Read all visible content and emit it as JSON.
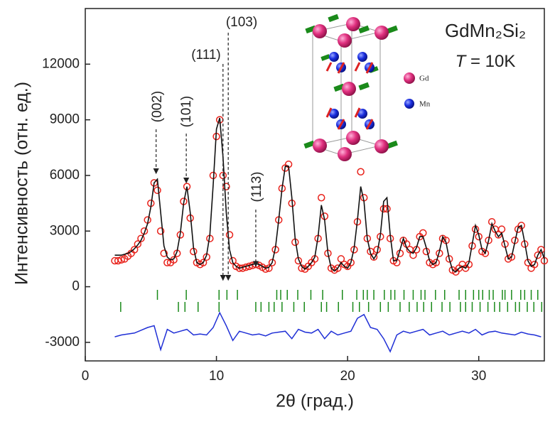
{
  "chart_data": {
    "type": "diffraction",
    "title": "GdMn₂Si₂",
    "temperature_label": {
      "symbol": "T",
      "text": " = 10K"
    },
    "x_label": "2θ (град.)",
    "y_label": "Интенсивность (отн. ед.)",
    "xlim": [
      0,
      35
    ],
    "ylim": [
      -4000,
      15000
    ],
    "xticks": [
      0,
      10,
      20,
      30
    ],
    "yticks": [
      -3000,
      0,
      3000,
      6000,
      9000,
      12000
    ],
    "x": [
      2.25,
      2.5,
      2.75,
      3,
      3.25,
      3.5,
      3.75,
      4,
      4.25,
      4.5,
      4.75,
      5,
      5.25,
      5.5,
      5.75,
      6,
      6.25,
      6.5,
      6.75,
      7,
      7.25,
      7.5,
      7.75,
      8,
      8.25,
      8.5,
      8.75,
      9,
      9.25,
      9.5,
      9.75,
      10,
      10.25,
      10.5,
      10.75,
      11,
      11.25,
      11.5,
      11.75,
      12,
      12.25,
      12.5,
      12.75,
      13,
      13.25,
      13.5,
      13.75,
      14,
      14.25,
      14.5,
      14.75,
      15,
      15.25,
      15.5,
      15.75,
      16,
      16.25,
      16.5,
      16.75,
      17,
      17.25,
      17.5,
      17.75,
      18,
      18.25,
      18.5,
      18.75,
      19,
      19.25,
      19.5,
      19.75,
      20,
      20.25,
      20.5,
      20.75,
      21,
      21.25,
      21.5,
      21.75,
      22,
      22.25,
      22.5,
      22.75,
      23,
      23.25,
      23.5,
      23.75,
      24,
      24.25,
      24.5,
      24.75,
      25,
      25.25,
      25.5,
      25.75,
      26,
      26.25,
      26.5,
      26.75,
      27,
      27.25,
      27.5,
      27.75,
      28,
      28.25,
      28.5,
      28.75,
      29,
      29.25,
      29.5,
      29.75,
      30,
      30.25,
      30.5,
      30.75,
      31,
      31.25,
      31.5,
      31.75,
      32,
      32.25,
      32.5,
      32.75,
      33,
      33.25,
      33.5,
      33.75,
      34,
      34.25,
      34.5,
      34.75,
      35
    ],
    "series": [
      {
        "name": "observed",
        "color": "#e8221b",
        "values": [
          1400,
          1400,
          1450,
          1500,
          1650,
          1800,
          2000,
          2300,
          2600,
          3000,
          3600,
          4500,
          5600,
          5200,
          3000,
          1800,
          1300,
          1300,
          1450,
          1800,
          2800,
          4600,
          5400,
          3700,
          1900,
          1300,
          1200,
          1300,
          1600,
          2600,
          6000,
          8100,
          9000,
          6000,
          5400,
          2800,
          1400,
          1100,
          1000,
          1000,
          1050,
          1100,
          1150,
          1200,
          1150,
          1050,
          950,
          1000,
          1300,
          2000,
          3600,
          5300,
          6400,
          6600,
          4500,
          2400,
          1400,
          1000,
          950,
          1100,
          1300,
          1500,
          2600,
          4800,
          3800,
          1800,
          1000,
          900,
          1000,
          1500,
          1200,
          1100,
          1300,
          2000,
          3500,
          6200,
          4800,
          2600,
          1900,
          1600,
          2000,
          2700,
          4200,
          4200,
          2600,
          1400,
          1300,
          1800,
          2500,
          2300,
          2000,
          1700,
          2000,
          2700,
          2900,
          1900,
          1300,
          1200,
          1300,
          1800,
          2600,
          2500,
          1500,
          900,
          800,
          1000,
          1200,
          1000,
          1200,
          2200,
          3100,
          2700,
          1900,
          1800,
          2500,
          3500,
          3100,
          2800,
          3100,
          2300,
          1500,
          1600,
          2500,
          3100,
          3300,
          2300,
          1300,
          1000,
          1200,
          1700,
          2000,
          1400
        ]
      },
      {
        "name": "calculated",
        "color": "#111111",
        "values": [
          1700,
          1700,
          1700,
          1750,
          1800,
          1900,
          2050,
          2250,
          2500,
          2900,
          3400,
          4300,
          5600,
          5800,
          4000,
          2200,
          1600,
          1450,
          1500,
          1900,
          2900,
          4500,
          5400,
          4000,
          2100,
          1300,
          1200,
          1300,
          1700,
          2800,
          5500,
          8500,
          9100,
          7000,
          4000,
          2000,
          1300,
          1100,
          1000,
          1050,
          1100,
          1150,
          1200,
          1250,
          1200,
          1100,
          1000,
          1050,
          1300,
          2100,
          3600,
          5300,
          6500,
          6500,
          4800,
          2600,
          1500,
          1100,
          950,
          1100,
          1300,
          1600,
          2700,
          4400,
          3600,
          1800,
          1000,
          850,
          1000,
          1300,
          1100,
          1000,
          1300,
          2100,
          3600,
          5400,
          4600,
          2600,
          1800,
          1500,
          1800,
          2800,
          4600,
          4800,
          2800,
          1400,
          1400,
          2000,
          2600,
          2100,
          1900,
          1800,
          2100,
          2700,
          2700,
          2100,
          1400,
          1200,
          1300,
          1900,
          2700,
          2400,
          1500,
          900,
          800,
          1000,
          1100,
          1000,
          1300,
          2300,
          3300,
          2800,
          2000,
          1800,
          2500,
          3400,
          3000,
          2700,
          2900,
          2200,
          1500,
          1600,
          2400,
          3200,
          3300,
          2400,
          1400,
          1100,
          1200,
          1700,
          2000,
          1500
        ]
      }
    ],
    "difference": {
      "name": "difference",
      "color": "#1f2fd6",
      "x": [
        2.25,
        2.75,
        3.25,
        3.75,
        4.25,
        4.75,
        5.25,
        5.75,
        6.25,
        6.75,
        7.25,
        7.75,
        8.25,
        8.75,
        9.25,
        9.75,
        10.25,
        10.75,
        11.25,
        11.75,
        12.25,
        12.75,
        13.25,
        13.75,
        14.25,
        14.75,
        15.25,
        15.75,
        16.25,
        16.75,
        17.25,
        17.75,
        18.25,
        18.75,
        19.25,
        19.75,
        20.25,
        20.75,
        21.25,
        21.75,
        22.25,
        22.75,
        23.25,
        23.75,
        24.25,
        24.75,
        25.25,
        25.75,
        26.25,
        26.75,
        27.25,
        27.75,
        28.25,
        28.75,
        29.25,
        29.75,
        30.25,
        30.75,
        31.25,
        31.75,
        32.25,
        32.75,
        33.25,
        33.75,
        34.25,
        34.75
      ],
      "values": [
        -2700,
        -2600,
        -2550,
        -2500,
        -2350,
        -2200,
        -2100,
        -3400,
        -2300,
        -2500,
        -2400,
        -2300,
        -2600,
        -2550,
        -2600,
        -2200,
        -1400,
        -2100,
        -2900,
        -2400,
        -2500,
        -2600,
        -2550,
        -2650,
        -2500,
        -2450,
        -2400,
        -2800,
        -2300,
        -2450,
        -2500,
        -2300,
        -2800,
        -2400,
        -2600,
        -2500,
        -2400,
        -1700,
        -1500,
        -2200,
        -2300,
        -2800,
        -3500,
        -2600,
        -2400,
        -2500,
        -2400,
        -2300,
        -2600,
        -2500,
        -2400,
        -2600,
        -2500,
        -2400,
        -2500,
        -2300,
        -2600,
        -2450,
        -2400,
        -2500,
        -2550,
        -2600,
        -2450,
        -2550,
        -2600,
        -2700
      ]
    },
    "bragg_color": "#1a8a1a",
    "bragg_rows": [
      [
        5.5,
        7.7,
        10.2,
        10.8,
        11.6,
        14.6,
        14.9,
        15.4,
        16.2,
        17.2,
        18.1,
        19.6,
        20.7,
        21.2,
        21.5,
        22.0,
        22.8,
        23.3,
        23.6,
        24.3,
        25.0,
        25.6,
        25.9,
        26.7,
        27.4,
        28.5,
        29.0,
        29.6,
        30.0,
        30.3,
        30.8,
        31.1,
        31.8,
        32.0,
        32.5,
        33.2,
        33.5,
        34.0,
        34.5
      ],
      [
        2.7,
        7.1,
        7.6,
        8.6,
        10.2,
        13.0,
        13.4,
        14.0,
        14.4,
        15.0,
        15.9,
        16.7,
        18.0,
        18.4,
        19.3,
        20.4,
        20.9,
        21.6,
        22.5,
        23.1,
        24.0,
        24.7,
        25.3,
        25.8,
        26.4,
        27.2,
        27.8,
        28.6,
        29.0,
        29.5,
        30.1,
        30.7,
        31.2,
        31.6,
        32.2,
        32.8,
        33.1,
        33.7,
        34.2,
        34.8
      ]
    ],
    "annotations": [
      {
        "text": "(002)",
        "x": 5.4,
        "y": 6100
      },
      {
        "text": "(101)",
        "x": 7.7,
        "y": 5600
      },
      {
        "text": "(111)",
        "x": 10.5,
        "y": 350
      },
      {
        "text": "(103)",
        "x": 10.9,
        "y": 350
      },
      {
        "text": "(113)",
        "x": 13.0,
        "y": 1100
      }
    ],
    "inset_legend": [
      "Gd",
      "Mn"
    ]
  }
}
